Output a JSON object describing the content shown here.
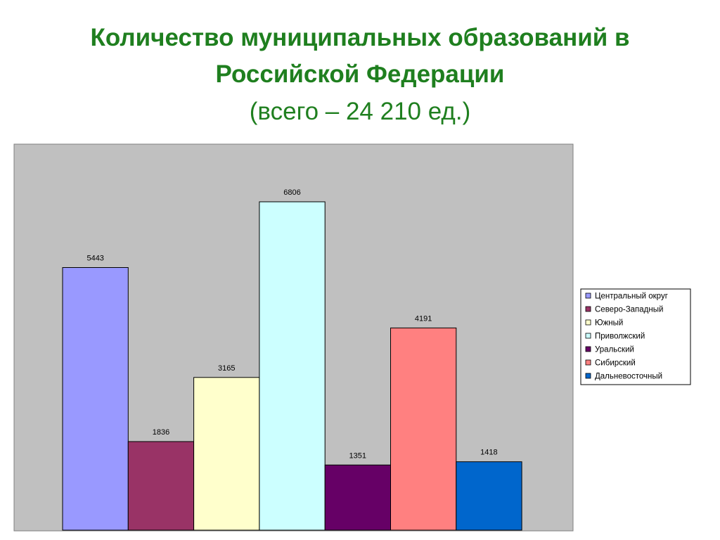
{
  "header": {
    "title_line1": "Количество муниципальных образований в",
    "title_line2": "Российской Федерации",
    "subtitle": "(всего – 24 210 ед.)",
    "title_color": "#1f7f1f"
  },
  "chart_data": {
    "type": "bar",
    "categories": [
      "Центральный округ",
      "Северо-Западный",
      "Южный",
      "Приволжский",
      "Уральский",
      "Сибирский",
      "Дальневосточный"
    ],
    "series": [
      {
        "values": [
          5443,
          1836,
          3165,
          6806,
          1351,
          4191,
          1418
        ],
        "colors": [
          "#9999ff",
          "#993366",
          "#ffffcc",
          "#ccffff",
          "#660066",
          "#ff8080",
          "#0066cc"
        ]
      }
    ],
    "ylim": [
      0,
      8000
    ],
    "grid": false,
    "legend": "right",
    "plot_background": "#c0c0c0"
  }
}
